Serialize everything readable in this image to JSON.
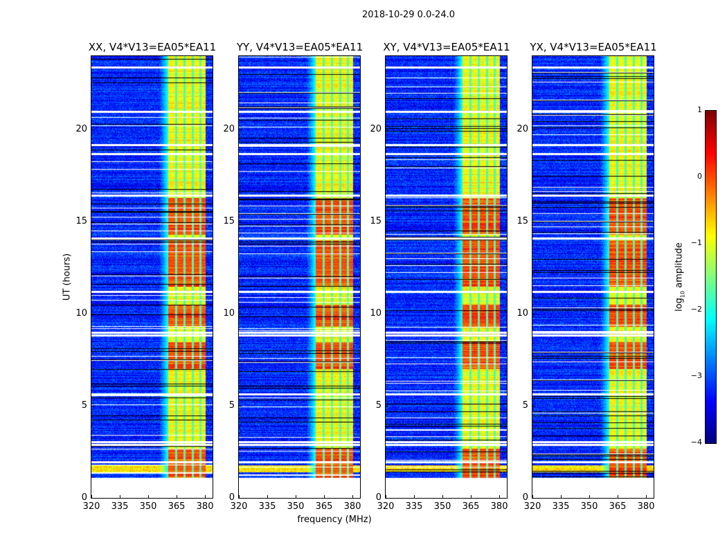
{
  "chart_data": {
    "type": "heatmap",
    "title": "2018-10-29 0.0-24.0",
    "xlabel": "frequency (MHz)",
    "ylabel": "UT (hours)",
    "xlim": [
      320,
      384
    ],
    "ylim": [
      0,
      24
    ],
    "xticks": [
      "320",
      "335",
      "350",
      "365",
      "380"
    ],
    "xtick_values": [
      320,
      335,
      350,
      365,
      380
    ],
    "yticks": [
      "0",
      "5",
      "10",
      "15",
      "20"
    ],
    "ytick_values": [
      0,
      5,
      10,
      15,
      20
    ],
    "panels": [
      {
        "title": "XX, V4*V13=EA05*EA11"
      },
      {
        "title": "YY, V4*V13=EA05*EA11"
      },
      {
        "title": "XY, V4*V13=EA05*EA11"
      },
      {
        "title": "YX, V4*V13=EA05*EA11"
      }
    ],
    "data_start_ut": 1.1,
    "data_end_ut": 24.0,
    "background_level_log10": -3.2,
    "band_mhz": [
      360.5,
      380.0
    ],
    "band_level_log10": -0.9,
    "subband_edges_mhz": [
      364.5,
      369.0,
      373.5,
      377.5
    ],
    "bright_intervals_ut": [
      [
        1.1,
        2.7
      ],
      [
        7.0,
        8.5
      ],
      [
        9.3,
        10.5
      ],
      [
        11.5,
        14.0
      ],
      [
        14.3,
        16.3
      ]
    ],
    "flagged_ut": [
      1.95,
      2.9,
      3.05,
      5.65,
      8.85,
      9.0,
      11.2,
      14.1,
      16.45,
      18.7,
      19.2,
      21.0,
      23.4
    ],
    "colorbar": {
      "label_prefix": "log",
      "label_sub": "10",
      "label_suffix": " amplitude",
      "colormap": "jet",
      "range": [
        -4,
        1
      ],
      "ticks": [
        "1",
        "0",
        "−1",
        "−2",
        "−3",
        "−4"
      ],
      "tick_values": [
        1,
        0,
        -1,
        -2,
        -3,
        -4
      ]
    }
  }
}
